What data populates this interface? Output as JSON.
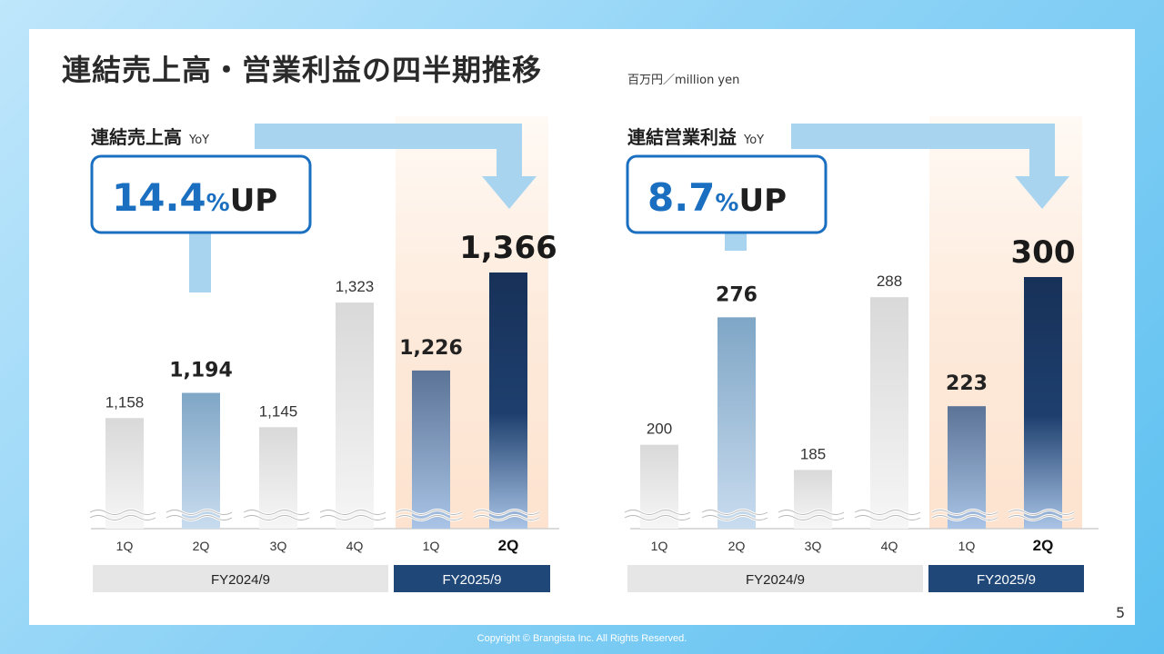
{
  "page": {
    "title": "連結売上高・営業利益の四半期推移",
    "unit": "百万円／million yen",
    "page_number": "5",
    "copyright": "Copyright © Brangista Inc. All Rights Reserved."
  },
  "colors": {
    "accent_blue": "#1a6fc0",
    "navy": "#1c3a66",
    "gray_bar": "#dcdcdc",
    "highlight_bg": "#fde9d9"
  },
  "chart_data": [
    {
      "type": "bar",
      "title": "連結売上高",
      "yoy": {
        "label": "YoY",
        "value": "14.4",
        "percent_sign": "%",
        "suffix": "UP"
      },
      "categories": [
        "1Q",
        "2Q",
        "3Q",
        "4Q",
        "1Q",
        "2Q"
      ],
      "values": [
        1158,
        1194,
        1145,
        1323,
        1226,
        1366
      ],
      "value_labels": [
        "1,158",
        "1,194",
        "1,145",
        "1,323",
        "1,226",
        "1,366"
      ],
      "groups": [
        {
          "label": "FY2024/9",
          "categories": [
            "1Q",
            "2Q",
            "3Q",
            "4Q"
          ]
        },
        {
          "label": "FY2025/9",
          "categories": [
            "1Q",
            "2Q"
          ]
        }
      ],
      "axis_break": true,
      "ylim": [
        0,
        1400
      ]
    },
    {
      "type": "bar",
      "title": "連結営業利益",
      "yoy": {
        "label": "YoY",
        "value": "8.7",
        "percent_sign": "%",
        "suffix": "UP"
      },
      "categories": [
        "1Q",
        "2Q",
        "3Q",
        "4Q",
        "1Q",
        "2Q"
      ],
      "values": [
        200,
        276,
        185,
        288,
        223,
        300
      ],
      "value_labels": [
        "200",
        "276",
        "185",
        "288",
        "223",
        "300"
      ],
      "groups": [
        {
          "label": "FY2024/9",
          "categories": [
            "1Q",
            "2Q",
            "3Q",
            "4Q"
          ]
        },
        {
          "label": "FY2025/9",
          "categories": [
            "1Q",
            "2Q"
          ]
        }
      ],
      "axis_break": true,
      "ylim": [
        0,
        320
      ]
    }
  ]
}
